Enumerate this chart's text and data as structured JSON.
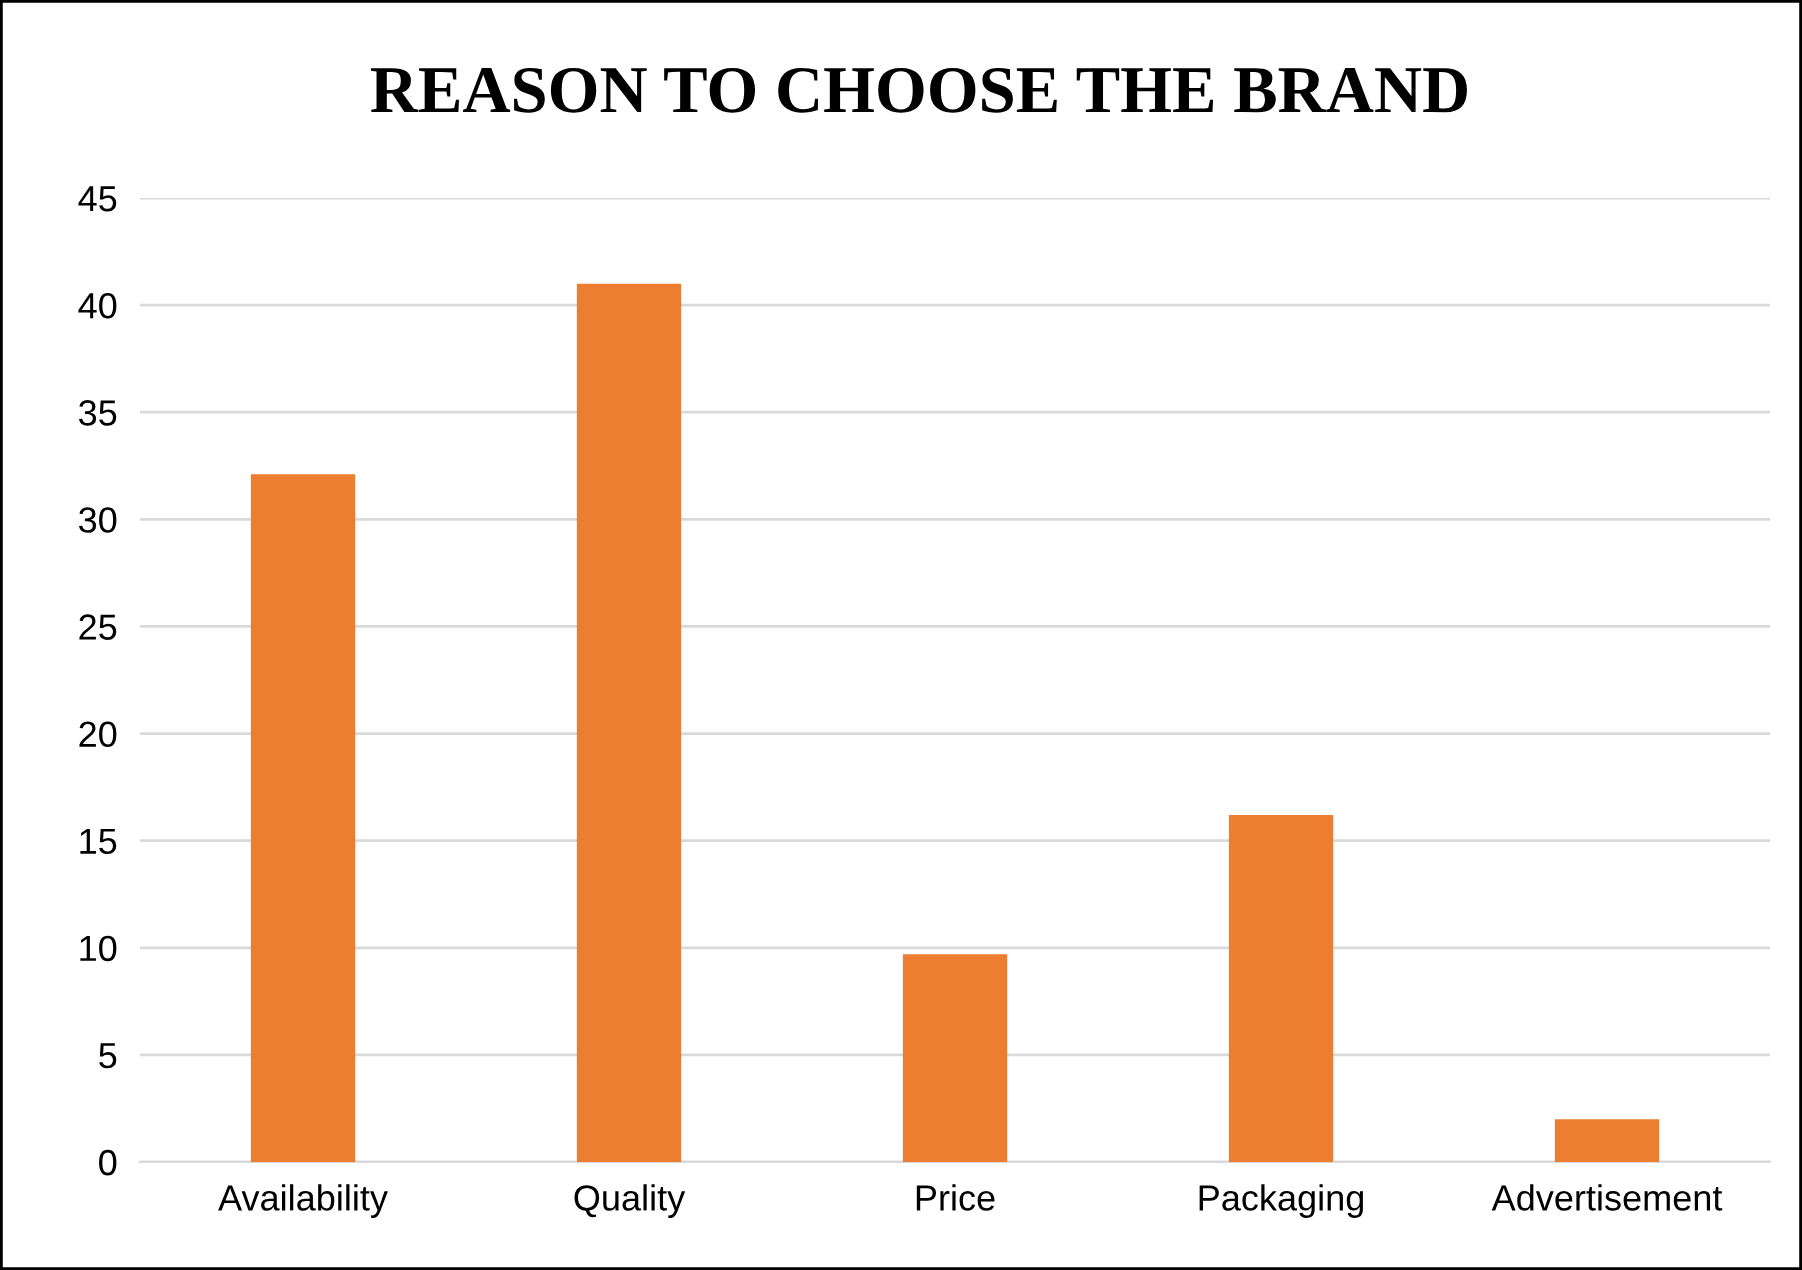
{
  "chart_data": {
    "type": "bar",
    "title": "REASON TO CHOOSE THE BRAND",
    "categories": [
      "Availability",
      "Quality",
      "Price",
      "Packaging",
      "Advertisement"
    ],
    "values": [
      32.1,
      41,
      9.7,
      16.2,
      2
    ],
    "color": "#ed7d31",
    "ylim": [
      0,
      45
    ],
    "yticks": [
      0,
      5,
      10,
      15,
      20,
      25,
      30,
      35,
      40,
      45
    ],
    "grid": "y",
    "legend": false
  }
}
